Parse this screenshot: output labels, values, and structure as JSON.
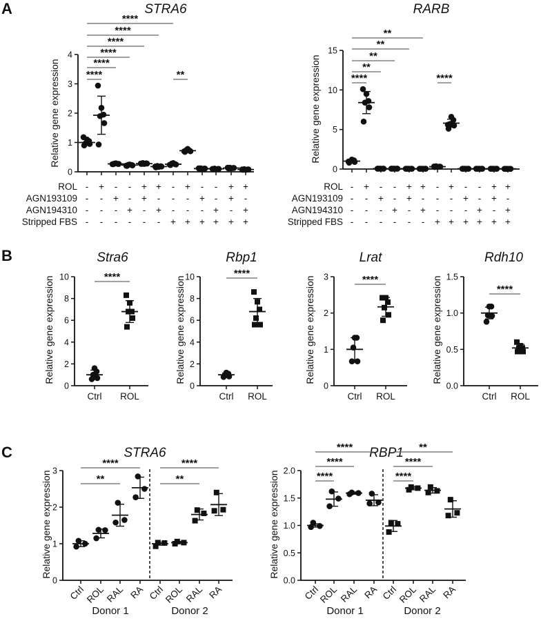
{
  "panels": [
    "A",
    "B",
    "C"
  ],
  "chart_data": [
    {
      "type": "scatter",
      "panel": "A",
      "title": "STRA6",
      "ylabel": "Relative gene expression",
      "ylim": [
        0,
        4
      ],
      "ytick_labels": [
        "0",
        "1",
        "2",
        "3",
        "4"
      ],
      "marker": "circle",
      "conditions": [
        {
          "label": "ROL",
          "values": [
            "-",
            "+",
            "-",
            "-",
            "+",
            "+",
            "-",
            "+",
            "-",
            "-",
            "+",
            "+"
          ]
        },
        {
          "label": "AGN193109",
          "values": [
            "-",
            "-",
            "+",
            "-",
            "+",
            "-",
            "-",
            "-",
            "+",
            "-",
            "+",
            "-"
          ]
        },
        {
          "label": "AGN194310",
          "values": [
            "-",
            "-",
            "-",
            "+",
            "-",
            "+",
            "-",
            "-",
            "-",
            "+",
            "-",
            "+"
          ]
        },
        {
          "label": "Stripped FBS",
          "values": [
            "-",
            "-",
            "-",
            "-",
            "-",
            "-",
            "+",
            "+",
            "+",
            "+",
            "+",
            "+"
          ]
        }
      ],
      "groups": [
        {
          "points": [
            0.9,
            0.95,
            0.97,
            1.05,
            1.1,
            1.18
          ],
          "mean": 1.0,
          "sd": 0.1
        },
        {
          "points": [
            0.93,
            1.66,
            1.9,
            1.95,
            2.18,
            2.94
          ],
          "mean": 1.93,
          "sd": 0.65
        },
        {
          "points": [
            0.26,
            0.27,
            0.28,
            0.27,
            0.29,
            0.26
          ],
          "mean": 0.27,
          "sd": 0.01
        },
        {
          "points": [
            0.2,
            0.22,
            0.24,
            0.23,
            0.25,
            0.21
          ],
          "mean": 0.23,
          "sd": 0.02
        },
        {
          "points": [
            0.27,
            0.28,
            0.3,
            0.29,
            0.27,
            0.28
          ],
          "mean": 0.28,
          "sd": 0.01
        },
        {
          "points": [
            0.15,
            0.18,
            0.2,
            0.19,
            0.17,
            0.18
          ],
          "mean": 0.18,
          "sd": 0.02
        },
        {
          "points": [
            0.23,
            0.25,
            0.28,
            0.26,
            0.3,
            0.24
          ],
          "mean": 0.26,
          "sd": 0.03
        },
        {
          "points": [
            0.68,
            0.7,
            0.74,
            0.72,
            0.78,
            0.7
          ],
          "mean": 0.72,
          "sd": 0.04
        },
        {
          "points": [
            0.1,
            0.11,
            0.12,
            0.11,
            0.1,
            0.12
          ],
          "mean": 0.11,
          "sd": 0.01
        },
        {
          "points": [
            0.09,
            0.1,
            0.11,
            0.1,
            0.09,
            0.1
          ],
          "mean": 0.1,
          "sd": 0.01
        },
        {
          "points": [
            0.12,
            0.13,
            0.14,
            0.13,
            0.12,
            0.14
          ],
          "mean": 0.13,
          "sd": 0.01
        },
        {
          "points": [
            0.07,
            0.08,
            0.09,
            0.08,
            0.07,
            0.08
          ],
          "mean": 0.08,
          "sd": 0.01
        }
      ],
      "brackets": [
        {
          "from": 1,
          "to": 2,
          "label": "****"
        },
        {
          "from": 1,
          "to": 3,
          "label": "****"
        },
        {
          "from": 1,
          "to": 4,
          "label": "****"
        },
        {
          "from": 1,
          "to": 5,
          "label": "****"
        },
        {
          "from": 1,
          "to": 6,
          "label": "****"
        },
        {
          "from": 1,
          "to": 7,
          "label": "****"
        },
        {
          "from": 7,
          "to": 8,
          "label": "**"
        }
      ]
    },
    {
      "type": "scatter",
      "panel": "A",
      "title": "RARB",
      "ylabel": "Relative gene expression",
      "ylim": [
        0,
        15
      ],
      "ytick_labels": [
        "0",
        "5",
        "10",
        "15"
      ],
      "marker": "circle",
      "conditions": [
        {
          "label": "ROL",
          "values": [
            "-",
            "+",
            "-",
            "-",
            "+",
            "+",
            "-",
            "+",
            "-",
            "-",
            "+",
            "+"
          ]
        },
        {
          "label": "AGN193109",
          "values": [
            "-",
            "-",
            "+",
            "-",
            "+",
            "-",
            "-",
            "-",
            "+",
            "-",
            "+",
            "-"
          ]
        },
        {
          "label": "AGN194310",
          "values": [
            "-",
            "-",
            "-",
            "+",
            "-",
            "+",
            "-",
            "-",
            "-",
            "+",
            "-",
            "+"
          ]
        },
        {
          "label": "Stripped FBS",
          "values": [
            "-",
            "-",
            "-",
            "-",
            "-",
            "-",
            "+",
            "+",
            "+",
            "+",
            "+",
            "+"
          ]
        }
      ],
      "groups": [
        {
          "points": [
            0.8,
            0.9,
            1.0,
            1.1,
            1.2,
            0.95
          ],
          "mean": 1.0,
          "sd": 0.15
        },
        {
          "points": [
            6.0,
            7.8,
            8.4,
            8.6,
            9.5,
            10.1
          ],
          "mean": 8.4,
          "sd": 1.4
        },
        {
          "points": [
            0.05,
            0.05,
            0.05,
            0.05,
            0.05,
            0.05
          ],
          "mean": 0.05,
          "sd": 0.0
        },
        {
          "points": [
            0.05,
            0.05,
            0.05,
            0.05,
            0.05,
            0.05
          ],
          "mean": 0.05,
          "sd": 0.0
        },
        {
          "points": [
            0.04,
            0.04,
            0.04,
            0.04,
            0.04,
            0.04
          ],
          "mean": 0.04,
          "sd": 0.0
        },
        {
          "points": [
            0.04,
            0.04,
            0.04,
            0.04,
            0.04,
            0.04
          ],
          "mean": 0.04,
          "sd": 0.0
        },
        {
          "points": [
            0.25,
            0.3,
            0.35,
            0.3,
            0.28,
            0.32
          ],
          "mean": 0.3,
          "sd": 0.03
        },
        {
          "points": [
            5.1,
            5.5,
            5.7,
            6.2,
            6.6,
            5.6
          ],
          "mean": 5.8,
          "sd": 0.5
        },
        {
          "points": [
            0.04,
            0.04,
            0.04,
            0.04,
            0.04,
            0.04
          ],
          "mean": 0.04,
          "sd": 0.0
        },
        {
          "points": [
            0.04,
            0.04,
            0.04,
            0.04,
            0.04,
            0.04
          ],
          "mean": 0.04,
          "sd": 0.0
        },
        {
          "points": [
            0.04,
            0.04,
            0.04,
            0.04,
            0.04,
            0.04
          ],
          "mean": 0.04,
          "sd": 0.0
        },
        {
          "points": [
            0.03,
            0.03,
            0.03,
            0.03,
            0.03,
            0.03
          ],
          "mean": 0.03,
          "sd": 0.0
        }
      ],
      "brackets": [
        {
          "from": 1,
          "to": 2,
          "label": "****"
        },
        {
          "from": 1,
          "to": 3,
          "label": "**"
        },
        {
          "from": 1,
          "to": 4,
          "label": "**"
        },
        {
          "from": 1,
          "to": 5,
          "label": "**"
        },
        {
          "from": 1,
          "to": 6,
          "label": "**"
        },
        {
          "from": 7,
          "to": 8,
          "label": "****"
        }
      ]
    },
    {
      "type": "scatter",
      "panel": "B",
      "title": "Stra6",
      "ylabel": "Relative gene expression",
      "ylim": [
        0,
        10
      ],
      "ytick_labels": [
        "0",
        "2",
        "4",
        "6",
        "8",
        "10"
      ],
      "categories": [
        "Ctrl",
        "ROL"
      ],
      "groups": [
        {
          "marker": "circle",
          "points": [
            0.6,
            0.7,
            1.0,
            1.3,
            1.6
          ],
          "mean": 1.0,
          "sd": 0.43
        },
        {
          "marker": "square",
          "points": [
            5.4,
            6.2,
            6.8,
            6.8,
            7.6,
            8.3
          ],
          "mean": 6.8,
          "sd": 1.0
        }
      ],
      "brackets": [
        {
          "from": 1,
          "to": 2,
          "label": "****"
        }
      ]
    },
    {
      "type": "scatter",
      "panel": "B",
      "title": "Rbp1",
      "ylabel": "Relative gene expression",
      "ylim": [
        0,
        10
      ],
      "ytick_labels": [
        "0",
        "2",
        "4",
        "6",
        "8",
        "10"
      ],
      "categories": [
        "Ctrl",
        "ROL"
      ],
      "groups": [
        {
          "marker": "circle",
          "points": [
            0.8,
            0.85,
            1.0,
            1.1,
            1.2
          ],
          "mean": 1.0,
          "sd": 0.15
        },
        {
          "marker": "square",
          "points": [
            5.6,
            5.6,
            6.2,
            7.0,
            7.7,
            8.6
          ],
          "mean": 6.8,
          "sd": 1.2
        }
      ],
      "brackets": [
        {
          "from": 1,
          "to": 2,
          "label": "****"
        }
      ]
    },
    {
      "type": "scatter",
      "panel": "B",
      "title": "Lrat",
      "ylabel": "Relative gene expression",
      "ylim": [
        0,
        3
      ],
      "ytick_labels": [
        "0",
        "1",
        "2",
        "3"
      ],
      "categories": [
        "Ctrl",
        "ROL"
      ],
      "groups": [
        {
          "marker": "circle",
          "points": [
            0.67,
            0.67,
            1.05,
            1.32,
            1.32
          ],
          "mean": 1.0,
          "sd": 0.32
        },
        {
          "marker": "square",
          "points": [
            1.8,
            1.95,
            2.15,
            2.3,
            2.42,
            2.42
          ],
          "mean": 2.17,
          "sd": 0.26
        }
      ],
      "brackets": [
        {
          "from": 1,
          "to": 2,
          "label": "****"
        }
      ]
    },
    {
      "type": "scatter",
      "panel": "B",
      "title": "Rdh10",
      "ylabel": "Relative gene expression",
      "ylim": [
        0,
        1.5
      ],
      "ytick_labels": [
        "0.0",
        "0.5",
        "1.0",
        "1.5"
      ],
      "categories": [
        "Ctrl",
        "ROL"
      ],
      "groups": [
        {
          "marker": "circle",
          "points": [
            0.88,
            0.96,
            0.97,
            1.09,
            1.09
          ],
          "mean": 1.0,
          "sd": 0.08
        },
        {
          "marker": "square",
          "points": [
            0.47,
            0.47,
            0.52,
            0.52,
            0.55,
            0.6
          ],
          "mean": 0.52,
          "sd": 0.05
        }
      ],
      "brackets": [
        {
          "from": 1,
          "to": 2,
          "label": "****"
        }
      ]
    },
    {
      "type": "scatter",
      "panel": "C",
      "title": "STRA6",
      "ylabel": "Relative gene expression",
      "ylim": [
        0,
        3
      ],
      "ytick_labels": [
        "0",
        "1",
        "2",
        "3"
      ],
      "categories": [
        "Ctrl",
        "ROL",
        "RAL",
        "RA",
        "Ctrl",
        "ROL",
        "RAL",
        "RA"
      ],
      "donors": [
        "Donor 1",
        "Donor 2"
      ],
      "groups": [
        {
          "marker": "circle",
          "points": [
            0.92,
            1.0,
            1.08
          ],
          "mean": 1.0,
          "sd": 0.08
        },
        {
          "marker": "circle",
          "points": [
            1.15,
            1.37,
            1.38
          ],
          "mean": 1.28,
          "sd": 0.12
        },
        {
          "marker": "circle",
          "points": [
            1.58,
            1.65,
            2.12
          ],
          "mean": 1.78,
          "sd": 0.3
        },
        {
          "marker": "circle",
          "points": [
            2.27,
            2.5,
            2.84
          ],
          "mean": 2.53,
          "sd": 0.29
        },
        {
          "marker": "square",
          "points": [
            0.93,
            1.02,
            1.03
          ],
          "mean": 1.0,
          "sd": 0.04
        },
        {
          "marker": "square",
          "points": [
            1.0,
            1.03,
            1.06
          ],
          "mean": 1.03,
          "sd": 0.03
        },
        {
          "marker": "square",
          "points": [
            1.63,
            1.83,
            1.92
          ],
          "mean": 1.8,
          "sd": 0.15
        },
        {
          "marker": "square",
          "points": [
            1.9,
            1.93,
            2.4
          ],
          "mean": 2.07,
          "sd": 0.3
        }
      ],
      "brackets": [
        {
          "from": 1,
          "to": 3,
          "label": "**"
        },
        {
          "from": 1,
          "to": 4,
          "label": "****"
        },
        {
          "from": 5,
          "to": 7,
          "label": "**"
        },
        {
          "from": 5,
          "to": 8,
          "label": "****"
        }
      ]
    },
    {
      "type": "scatter",
      "panel": "C",
      "title": "RBP1",
      "ylabel": "Relative gene expression",
      "ylim": [
        0,
        2
      ],
      "ytick_labels": [
        "0.0",
        "0.5",
        "1.0",
        "1.5",
        "2.0"
      ],
      "categories": [
        "Ctrl",
        "ROL",
        "RAL",
        "RA",
        "Ctrl",
        "ROL",
        "RAL",
        "RA"
      ],
      "donors": [
        "Donor 1",
        "Donor 2"
      ],
      "groups": [
        {
          "marker": "circle",
          "points": [
            0.97,
            0.99,
            1.05
          ],
          "mean": 1.0,
          "sd": 0.03
        },
        {
          "marker": "circle",
          "points": [
            1.35,
            1.49,
            1.62
          ],
          "mean": 1.48,
          "sd": 0.13
        },
        {
          "marker": "circle",
          "points": [
            1.57,
            1.59,
            1.6
          ],
          "mean": 1.59,
          "sd": 0.02
        },
        {
          "marker": "circle",
          "points": [
            1.4,
            1.42,
            1.58
          ],
          "mean": 1.46,
          "sd": 0.1
        },
        {
          "marker": "square",
          "points": [
            0.88,
            1.03,
            1.05
          ],
          "mean": 0.99,
          "sd": 0.1
        },
        {
          "marker": "square",
          "points": [
            1.65,
            1.68,
            1.7
          ],
          "mean": 1.68,
          "sd": 0.03
        },
        {
          "marker": "square",
          "points": [
            1.6,
            1.63,
            1.7
          ],
          "mean": 1.64,
          "sd": 0.05
        },
        {
          "marker": "square",
          "points": [
            1.18,
            1.23,
            1.47
          ],
          "mean": 1.3,
          "sd": 0.15
        }
      ],
      "brackets": [
        {
          "from": 1,
          "to": 2,
          "label": "****"
        },
        {
          "from": 1,
          "to": 3,
          "label": "****"
        },
        {
          "from": 1,
          "to": 4,
          "label": "****"
        },
        {
          "from": 5,
          "to": 6,
          "label": "****"
        },
        {
          "from": 5,
          "to": 7,
          "label": "****"
        },
        {
          "from": 5,
          "to": 8,
          "label": "**"
        }
      ]
    }
  ]
}
